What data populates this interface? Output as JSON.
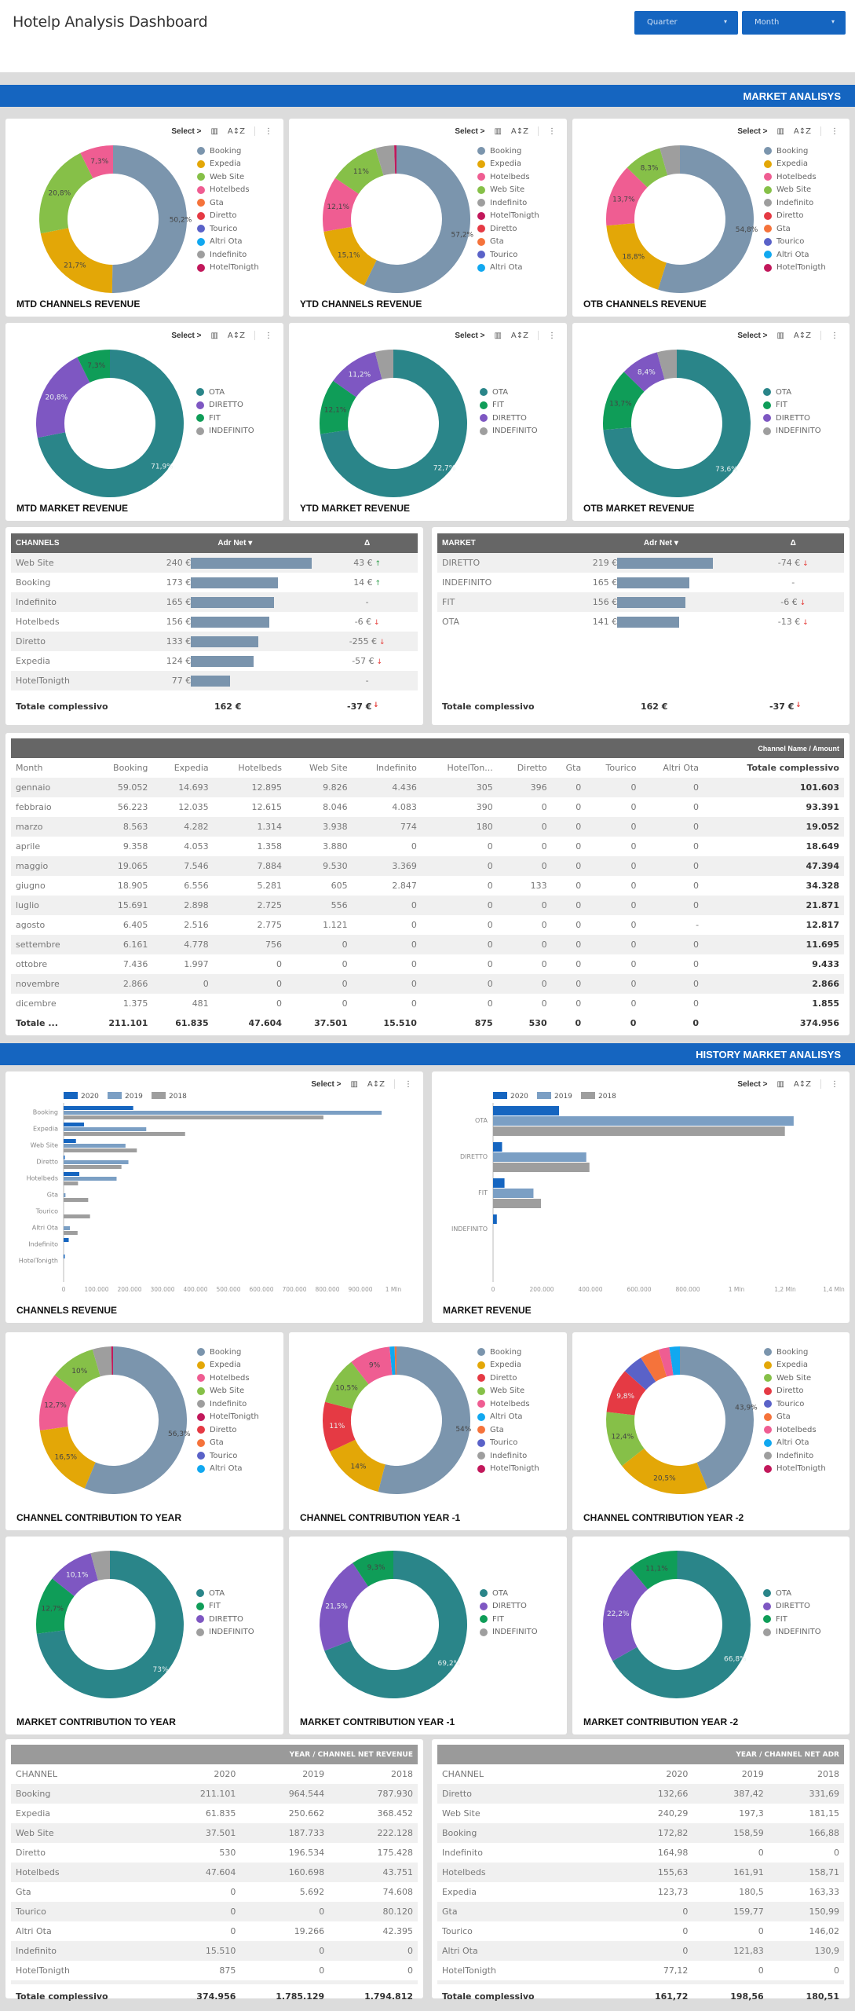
{
  "header": {
    "title": "Hotelp Analysis Dashboard",
    "filters": [
      {
        "label": "Quarter"
      },
      {
        "label": "Month"
      }
    ]
  },
  "sections": {
    "market": "MARKET ANALISYS",
    "history": "HISTORY MARKET ANALISYS"
  },
  "toolbar": {
    "select_label": "Select >",
    "chart_icon": "chart-settings-icon",
    "sort_icon": "sort-az-icon",
    "more_icon": "more-vertical-icon"
  },
  "colors": {
    "Booking": "#7b95ad",
    "Expedia": "#e3a707",
    "Web Site": "#86c048",
    "Hotelbeds": "#ef5d92",
    "Gta": "#f5733b",
    "Diretto": "#e53a44",
    "Tourico": "#5a62c8",
    "Altri Ota": "#11a8f0",
    "Indefinito": "#9e9e9e",
    "HotelTonigth": "#c2185b",
    "OTA": "#2a8589",
    "DIRETTO": "#7e57c2",
    "FIT": "#0f9d58",
    "INDEFINITO": "#9e9e9e",
    "accent": "#1565c0"
  },
  "chart_data": [
    {
      "id": "mtd-channels",
      "type": "pie",
      "title": "MTD CHANNELS REVENUE",
      "labels_pos": "donut",
      "legend": [
        "Booking",
        "Expedia",
        "Web Site",
        "Hotelbeds",
        "Gta",
        "Diretto",
        "Tourico",
        "Altri Ota",
        "Indefinito",
        "HotelTonigth"
      ],
      "slices": [
        {
          "name": "Booking",
          "value": 50.2,
          "label": "50,2%"
        },
        {
          "name": "Expedia",
          "value": 21.7,
          "label": "21,7%"
        },
        {
          "name": "Web Site",
          "value": 20.8,
          "label": "20,8%"
        },
        {
          "name": "Hotelbeds",
          "value": 7.3,
          "label": "7,3%"
        }
      ]
    },
    {
      "id": "ytd-channels",
      "type": "pie",
      "title": "YTD CHANNELS REVENUE",
      "legend": [
        "Booking",
        "Expedia",
        "Hotelbeds",
        "Web Site",
        "Indefinito",
        "HotelTonigth",
        "Diretto",
        "Gta",
        "Tourico",
        "Altri Ota"
      ],
      "slices": [
        {
          "name": "Booking",
          "value": 57.2,
          "label": "57,2%"
        },
        {
          "name": "Expedia",
          "value": 15.1,
          "label": "15,1%"
        },
        {
          "name": "Hotelbeds",
          "value": 12.1,
          "label": "12,1%"
        },
        {
          "name": "Web Site",
          "value": 11,
          "label": "11%"
        },
        {
          "name": "Indefinito",
          "value": 4.1,
          "label": ""
        },
        {
          "name": "HotelTonigth",
          "value": 0.5,
          "label": ""
        }
      ]
    },
    {
      "id": "otb-channels",
      "type": "pie",
      "title": "OTB CHANNELS REVENUE",
      "legend": [
        "Booking",
        "Expedia",
        "Hotelbeds",
        "Web Site",
        "Indefinito",
        "Diretto",
        "Gta",
        "Tourico",
        "Altri Ota",
        "HotelTonigth"
      ],
      "slices": [
        {
          "name": "Booking",
          "value": 54.8,
          "label": "54,8%"
        },
        {
          "name": "Expedia",
          "value": 18.8,
          "label": "18,8%"
        },
        {
          "name": "Hotelbeds",
          "value": 13.7,
          "label": "13,7%"
        },
        {
          "name": "Web Site",
          "value": 8.3,
          "label": "8,3%"
        },
        {
          "name": "Indefinito",
          "value": 4.4,
          "label": ""
        }
      ]
    },
    {
      "id": "mtd-market",
      "type": "pie",
      "title": "MTD MARKET REVENUE",
      "legend": [
        "OTA",
        "DIRETTO",
        "FIT",
        "INDEFINITO"
      ],
      "slices": [
        {
          "name": "OTA",
          "value": 71.9,
          "label": "71,9%"
        },
        {
          "name": "DIRETTO",
          "value": 20.8,
          "label": "20,8%"
        },
        {
          "name": "FIT",
          "value": 7.3,
          "label": "7,3%"
        }
      ]
    },
    {
      "id": "ytd-market",
      "type": "pie",
      "title": "YTD MARKET REVENUE",
      "legend": [
        "OTA",
        "FIT",
        "DIRETTO",
        "INDEFINITO"
      ],
      "slices": [
        {
          "name": "OTA",
          "value": 72.7,
          "label": "72,7%"
        },
        {
          "name": "FIT",
          "value": 12.1,
          "label": "12,1%"
        },
        {
          "name": "DIRETTO",
          "value": 11.2,
          "label": "11,2%"
        },
        {
          "name": "INDEFINITO",
          "value": 4,
          "label": ""
        }
      ]
    },
    {
      "id": "otb-market",
      "type": "pie",
      "title": "OTB MARKET REVENUE",
      "legend": [
        "OTA",
        "FIT",
        "DIRETTO",
        "INDEFINITO"
      ],
      "slices": [
        {
          "name": "OTA",
          "value": 73.6,
          "label": "73,6%"
        },
        {
          "name": "FIT",
          "value": 13.7,
          "label": "13,7%"
        },
        {
          "name": "DIRETTO",
          "value": 8.4,
          "label": "8,4%"
        },
        {
          "name": "INDEFINITO",
          "value": 4.3,
          "label": ""
        }
      ]
    },
    {
      "id": "channels-revenue",
      "type": "bar",
      "orientation": "horizontal",
      "title": "CHANNELS REVENUE",
      "categories": [
        "Booking",
        "Expedia",
        "Web Site",
        "Diretto",
        "Hotelbeds",
        "Gta",
        "Tourico",
        "Altri Ota",
        "Indefinito",
        "HotelTonigth"
      ],
      "series": [
        {
          "name": "2020",
          "color": "#1565c0",
          "values": [
            211101,
            61835,
            37501,
            530,
            47604,
            0,
            0,
            0,
            15510,
            875
          ]
        },
        {
          "name": "2019",
          "color": "#7b9fc4",
          "values": [
            964544,
            250662,
            187733,
            196534,
            160698,
            5692,
            0,
            19266,
            0,
            0
          ]
        },
        {
          "name": "2018",
          "color": "#9e9e9e",
          "values": [
            787930,
            368452,
            222128,
            175428,
            43751,
            74608,
            80120,
            42395,
            0,
            0
          ]
        }
      ],
      "xlim": [
        0,
        1000000
      ],
      "xticks": [
        "0",
        "100.000",
        "200.000",
        "300.000",
        "400.000",
        "500.000",
        "600.000",
        "700.000",
        "800.000",
        "900.000",
        "1 Mln"
      ],
      "legend_position": "top-left"
    },
    {
      "id": "market-revenue",
      "type": "bar",
      "orientation": "horizontal",
      "title": "MARKET REVENUE",
      "categories": [
        "OTA",
        "DIRETTO",
        "FIT",
        "INDEFINITO"
      ],
      "series": [
        {
          "name": "2020",
          "color": "#1565c0",
          "values": [
            271000,
            37000,
            47000,
            15510
          ]
        },
        {
          "name": "2019",
          "color": "#7b9fc4",
          "values": [
            1235000,
            383000,
            166000,
            0
          ]
        },
        {
          "name": "2018",
          "color": "#9e9e9e",
          "values": [
            1199000,
            396000,
            197000,
            0
          ]
        }
      ],
      "xlim": [
        0,
        1400000
      ],
      "xticks": [
        "0",
        "200.000",
        "400.000",
        "600.000",
        "800.000",
        "1 Mln",
        "1,2 Mln",
        "1,4 Mln"
      ],
      "legend_position": "top-left"
    },
    {
      "id": "channel-contrib-year",
      "type": "pie",
      "title": "CHANNEL CONTRIBUTION TO YEAR",
      "legend": [
        "Booking",
        "Expedia",
        "Hotelbeds",
        "Web Site",
        "Indefinito",
        "HotelTonigth",
        "Diretto",
        "Gta",
        "Tourico",
        "Altri Ota"
      ],
      "slices": [
        {
          "name": "Booking",
          "value": 56.3,
          "label": "56,3%"
        },
        {
          "name": "Expedia",
          "value": 16.5,
          "label": "16,5%"
        },
        {
          "name": "Hotelbeds",
          "value": 12.7,
          "label": "12,7%"
        },
        {
          "name": "Web Site",
          "value": 10,
          "label": "10%"
        },
        {
          "name": "Indefinito",
          "value": 4.1,
          "label": ""
        },
        {
          "name": "HotelTonigth",
          "value": 0.4,
          "label": ""
        }
      ]
    },
    {
      "id": "channel-contrib-year-1",
      "type": "pie",
      "title": "CHANNEL CONTRIBUTION YEAR -1",
      "legend": [
        "Booking",
        "Expedia",
        "Diretto",
        "Web Site",
        "Hotelbeds",
        "Altri Ota",
        "Gta",
        "Tourico",
        "Indefinito",
        "HotelTonigth"
      ],
      "slices": [
        {
          "name": "Booking",
          "value": 54,
          "label": "54%"
        },
        {
          "name": "Expedia",
          "value": 14,
          "label": "14%"
        },
        {
          "name": "Diretto",
          "value": 11,
          "label": "11%"
        },
        {
          "name": "Web Site",
          "value": 10.5,
          "label": "10,5%"
        },
        {
          "name": "Hotelbeds",
          "value": 9,
          "label": "9%"
        },
        {
          "name": "Altri Ota",
          "value": 1.1,
          "label": ""
        },
        {
          "name": "Gta",
          "value": 0.4,
          "label": ""
        }
      ]
    },
    {
      "id": "channel-contrib-year-2",
      "type": "pie",
      "title": "CHANNEL CONTRIBUTION YEAR -2",
      "legend": [
        "Booking",
        "Expedia",
        "Web Site",
        "Diretto",
        "Tourico",
        "Gta",
        "Hotelbeds",
        "Altri Ota",
        "Indefinito",
        "HotelTonigth"
      ],
      "slices": [
        {
          "name": "Booking",
          "value": 43.9,
          "label": "43,9%"
        },
        {
          "name": "Expedia",
          "value": 20.5,
          "label": "20,5%"
        },
        {
          "name": "Web Site",
          "value": 12.4,
          "label": "12,4%"
        },
        {
          "name": "Diretto",
          "value": 9.8,
          "label": "9,8%"
        },
        {
          "name": "Tourico",
          "value": 4.5,
          "label": ""
        },
        {
          "name": "Gta",
          "value": 4.2,
          "label": ""
        },
        {
          "name": "Hotelbeds",
          "value": 2.4,
          "label": ""
        },
        {
          "name": "Altri Ota",
          "value": 2.3,
          "label": ""
        }
      ]
    },
    {
      "id": "market-contrib-year",
      "type": "pie",
      "title": "MARKET CONTRIBUTION TO YEAR",
      "legend": [
        "OTA",
        "FIT",
        "DIRETTO",
        "INDEFINITO"
      ],
      "slices": [
        {
          "name": "OTA",
          "value": 73,
          "label": "73%"
        },
        {
          "name": "FIT",
          "value": 12.7,
          "label": "12,7%"
        },
        {
          "name": "DIRETTO",
          "value": 10.1,
          "label": "10,1%"
        },
        {
          "name": "INDEFINITO",
          "value": 4.2,
          "label": ""
        }
      ]
    },
    {
      "id": "market-contrib-year-1",
      "type": "pie",
      "title": "MARKET CONTRIBUTION YEAR -1",
      "legend": [
        "OTA",
        "DIRETTO",
        "FIT",
        "INDEFINITO"
      ],
      "slices": [
        {
          "name": "OTA",
          "value": 69.2,
          "label": "69,2%"
        },
        {
          "name": "DIRETTO",
          "value": 21.5,
          "label": "21,5%"
        },
        {
          "name": "FIT",
          "value": 9.3,
          "label": "9,3%"
        }
      ]
    },
    {
      "id": "market-contrib-year-2",
      "type": "pie",
      "title": "MARKET CONTRIBUTION YEAR -2",
      "legend": [
        "OTA",
        "DIRETTO",
        "FIT",
        "INDEFINITO"
      ],
      "slices": [
        {
          "name": "OTA",
          "value": 66.8,
          "label": "66,8%"
        },
        {
          "name": "DIRETTO",
          "value": 22.2,
          "label": "22,2%"
        },
        {
          "name": "FIT",
          "value": 11.1,
          "label": "11,1%"
        }
      ]
    }
  ],
  "adr_channels": {
    "headers": [
      "CHANNELS",
      "Adr Net ▾",
      "Δ"
    ],
    "max": 240,
    "rows": [
      {
        "name": "Web Site",
        "adr": "240 €",
        "value": 240,
        "delta": "43 €",
        "dir": "up"
      },
      {
        "name": "Booking",
        "adr": "173 €",
        "value": 173,
        "delta": "14 €",
        "dir": "up"
      },
      {
        "name": "Indefinito",
        "adr": "165 €",
        "value": 165,
        "delta": "-",
        "dir": ""
      },
      {
        "name": "Hotelbeds",
        "adr": "156 €",
        "value": 156,
        "delta": "-6 €",
        "dir": "down"
      },
      {
        "name": "Diretto",
        "adr": "133 €",
        "value": 133,
        "delta": "-255 €",
        "dir": "down"
      },
      {
        "name": "Expedia",
        "adr": "124 €",
        "value": 124,
        "delta": "-57 €",
        "dir": "down"
      },
      {
        "name": "HotelTonigth",
        "adr": "77 €",
        "value": 77,
        "delta": "-",
        "dir": ""
      }
    ],
    "total": {
      "label": "Totale complessivo",
      "adr": "162 €",
      "delta": "-37 €",
      "dir": "down"
    }
  },
  "adr_market": {
    "headers": [
      "MARKET",
      "Adr Net ▾",
      "Δ"
    ],
    "max": 219,
    "rows": [
      {
        "name": "DIRETTO",
        "adr": "219 €",
        "value": 219,
        "delta": "-74 €",
        "dir": "down"
      },
      {
        "name": "INDEFINITO",
        "adr": "165 €",
        "value": 165,
        "delta": "-",
        "dir": ""
      },
      {
        "name": "FIT",
        "adr": "156 €",
        "value": 156,
        "delta": "-6 €",
        "dir": "down"
      },
      {
        "name": "OTA",
        "adr": "141 €",
        "value": 141,
        "delta": "-13 €",
        "dir": "down"
      }
    ],
    "total": {
      "label": "Totale complessivo",
      "adr": "162 €",
      "delta": "-37 €",
      "dir": "down"
    }
  },
  "monthly": {
    "caption": "Channel Name / Amount",
    "headers": [
      "Month",
      "Booking",
      "Expedia",
      "Hotelbeds",
      "Web Site",
      "Indefinito",
      "HotelTon...",
      "Diretto",
      "Gta",
      "Tourico",
      "Altri Ota",
      "Totale complessivo"
    ],
    "rows": [
      [
        "gennaio",
        "59.052",
        "14.693",
        "12.895",
        "9.826",
        "4.436",
        "305",
        "396",
        "0",
        "0",
        "0",
        "101.603"
      ],
      [
        "febbraio",
        "56.223",
        "12.035",
        "12.615",
        "8.046",
        "4.083",
        "390",
        "0",
        "0",
        "0",
        "0",
        "93.391"
      ],
      [
        "marzo",
        "8.563",
        "4.282",
        "1.314",
        "3.938",
        "774",
        "180",
        "0",
        "0",
        "0",
        "0",
        "19.052"
      ],
      [
        "aprile",
        "9.358",
        "4.053",
        "1.358",
        "3.880",
        "0",
        "0",
        "0",
        "0",
        "0",
        "0",
        "18.649"
      ],
      [
        "maggio",
        "19.065",
        "7.546",
        "7.884",
        "9.530",
        "3.369",
        "0",
        "0",
        "0",
        "0",
        "0",
        "47.394"
      ],
      [
        "giugno",
        "18.905",
        "6.556",
        "5.281",
        "605",
        "2.847",
        "0",
        "133",
        "0",
        "0",
        "0",
        "34.328"
      ],
      [
        "luglio",
        "15.691",
        "2.898",
        "2.725",
        "556",
        "0",
        "0",
        "0",
        "0",
        "0",
        "0",
        "21.871"
      ],
      [
        "agosto",
        "6.405",
        "2.516",
        "2.775",
        "1.121",
        "0",
        "0",
        "0",
        "0",
        "0",
        "-",
        "12.817"
      ],
      [
        "settembre",
        "6.161",
        "4.778",
        "756",
        "0",
        "0",
        "0",
        "0",
        "0",
        "0",
        "0",
        "11.695"
      ],
      [
        "ottobre",
        "7.436",
        "1.997",
        "0",
        "0",
        "0",
        "0",
        "0",
        "0",
        "0",
        "0",
        "9.433"
      ],
      [
        "novembre",
        "2.866",
        "0",
        "0",
        "0",
        "0",
        "0",
        "0",
        "0",
        "0",
        "0",
        "2.866"
      ],
      [
        "dicembre",
        "1.375",
        "481",
        "0",
        "0",
        "0",
        "0",
        "0",
        "0",
        "0",
        "0",
        "1.855"
      ]
    ],
    "total": [
      "Totale ...",
      "211.101",
      "61.835",
      "47.604",
      "37.501",
      "15.510",
      "875",
      "530",
      "0",
      "0",
      "0",
      "374.956"
    ]
  },
  "net_revenue": {
    "caption": "YEAR / CHANNEL NET REVENUE",
    "headers": [
      "CHANNEL",
      "2020",
      "2019",
      "2018"
    ],
    "rows": [
      [
        "Booking",
        "211.101",
        "964.544",
        "787.930"
      ],
      [
        "Expedia",
        "61.835",
        "250.662",
        "368.452"
      ],
      [
        "Web Site",
        "37.501",
        "187.733",
        "222.128"
      ],
      [
        "Diretto",
        "530",
        "196.534",
        "175.428"
      ],
      [
        "Hotelbeds",
        "47.604",
        "160.698",
        "43.751"
      ],
      [
        "Gta",
        "0",
        "5.692",
        "74.608"
      ],
      [
        "Tourico",
        "0",
        "0",
        "80.120"
      ],
      [
        "Altri Ota",
        "0",
        "19.266",
        "42.395"
      ],
      [
        "Indefinito",
        "15.510",
        "0",
        "0"
      ],
      [
        "HotelTonigth",
        "875",
        "0",
        "0"
      ]
    ],
    "total": [
      "Totale complessivo",
      "374.956",
      "1.785.129",
      "1.794.812"
    ]
  },
  "net_adr": {
    "caption": "YEAR / CHANNEL NET ADR",
    "headers": [
      "CHANNEL",
      "2020",
      "2019",
      "2018"
    ],
    "rows": [
      [
        "Diretto",
        "132,66",
        "387,42",
        "331,69"
      ],
      [
        "Web Site",
        "240,29",
        "197,3",
        "181,15"
      ],
      [
        "Booking",
        "172,82",
        "158,59",
        "166,88"
      ],
      [
        "Indefinito",
        "164,98",
        "0",
        "0"
      ],
      [
        "Hotelbeds",
        "155,63",
        "161,91",
        "158,71"
      ],
      [
        "Expedia",
        "123,73",
        "180,5",
        "163,33"
      ],
      [
        "Gta",
        "0",
        "159,77",
        "150,99"
      ],
      [
        "Tourico",
        "0",
        "0",
        "146,02"
      ],
      [
        "Altri Ota",
        "0",
        "121,83",
        "130,9"
      ],
      [
        "HotelTonigth",
        "77,12",
        "0",
        "0"
      ]
    ],
    "total": [
      "Totale complessivo",
      "161,72",
      "198,56",
      "180,51"
    ]
  }
}
